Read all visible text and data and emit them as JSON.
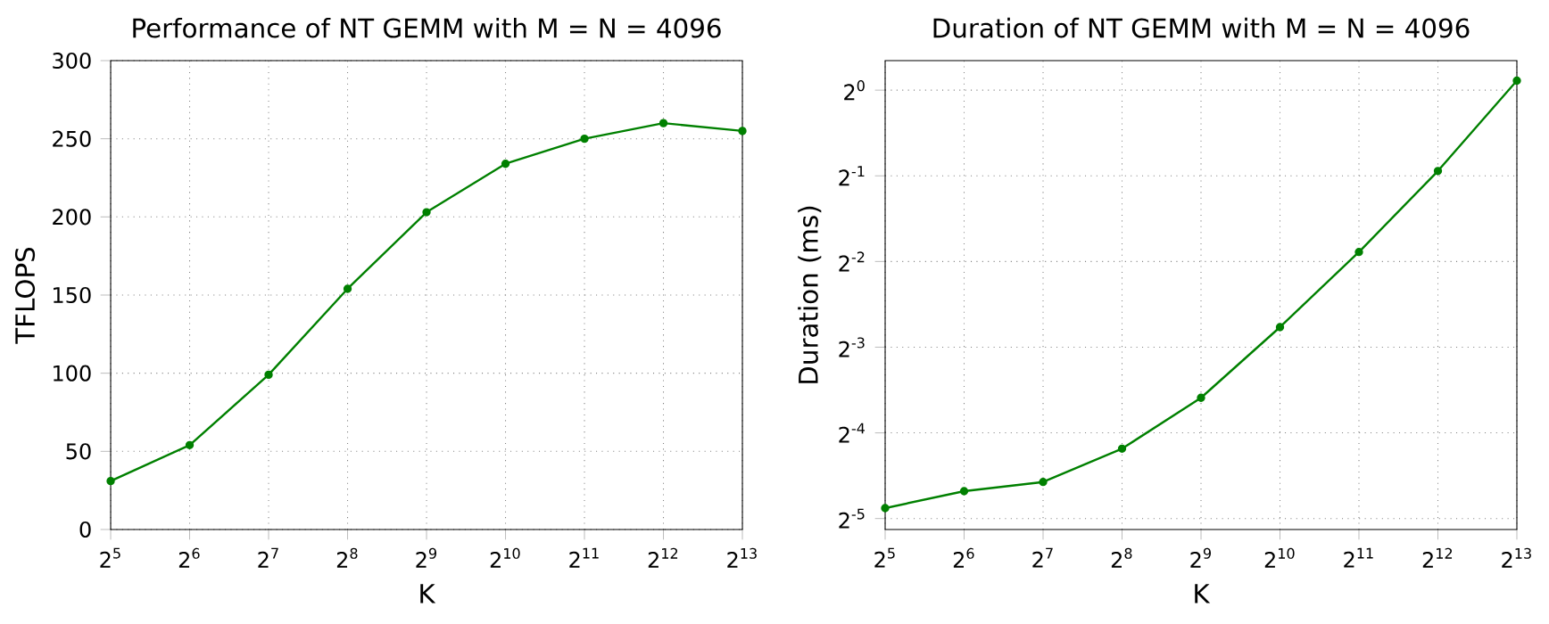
{
  "chart_data": [
    {
      "type": "line",
      "title": "Performance of NT GEMM with M = N = 4096",
      "xlabel": "K",
      "ylabel": "TFLOPS",
      "log": "x",
      "grid": true,
      "marker": "circle",
      "line_style": "solid",
      "x": [
        32,
        64,
        128,
        256,
        512,
        1024,
        2048,
        4096,
        8192
      ],
      "series": [
        {
          "color": "#008000",
          "values": [
            31,
            54,
            99,
            154,
            203,
            234,
            250,
            260,
            255
          ]
        }
      ],
      "xlim": [
        32,
        8192
      ],
      "ylim": [
        0,
        300
      ],
      "xticks": [
        {
          "value": 32,
          "label": "2$^{5}$"
        },
        {
          "value": 64,
          "label": "2$^{6}$"
        },
        {
          "value": 128,
          "label": "2$^{7}$"
        },
        {
          "value": 256,
          "label": "2$^{8}$"
        },
        {
          "value": 512,
          "label": "2$^{9}$"
        },
        {
          "value": 1024,
          "label": "2$^{10}$"
        },
        {
          "value": 2048,
          "label": "2$^{11}$"
        },
        {
          "value": 4096,
          "label": "2$^{12}$"
        },
        {
          "value": 8192,
          "label": "2$^{13}$"
        }
      ],
      "yticks": [
        0,
        50,
        100,
        150,
        200,
        250,
        300
      ]
    },
    {
      "type": "line",
      "title": "Duration of NT GEMM with M = N = 4096",
      "xlabel": "K",
      "ylabel": "Duration (ms)",
      "log": "xy",
      "grid": true,
      "marker": "circle",
      "line_style": "solid",
      "x": [
        32,
        64,
        128,
        256,
        512,
        1024,
        2048,
        4096,
        8192
      ],
      "series": [
        {
          "color": "#008000",
          "values": [
            0.034,
            0.039,
            0.042,
            0.055,
            0.083,
            0.147,
            0.27,
            0.52,
            1.08
          ]
        }
      ],
      "xlim": [
        32,
        8192
      ],
      "ylim": [
        0.0286,
        1.27
      ],
      "xticks": [
        {
          "value": 32,
          "label": "2$^{5}$"
        },
        {
          "value": 64,
          "label": "2$^{6}$"
        },
        {
          "value": 128,
          "label": "2$^{7}$"
        },
        {
          "value": 256,
          "label": "2$^{8}$"
        },
        {
          "value": 512,
          "label": "2$^{9}$"
        },
        {
          "value": 1024,
          "label": "2$^{10}$"
        },
        {
          "value": 2048,
          "label": "2$^{11}$"
        },
        {
          "value": 4096,
          "label": "2$^{12}$"
        },
        {
          "value": 8192,
          "label": "2$^{13}$"
        }
      ],
      "yticks": [
        {
          "value": 0.03125,
          "label": "2$^{-5}$"
        },
        {
          "value": 0.0625,
          "label": "2$^{-4}$"
        },
        {
          "value": 0.125,
          "label": "2$^{-3}$"
        },
        {
          "value": 0.25,
          "label": "2$^{-2}$"
        },
        {
          "value": 0.5,
          "label": "2$^{-1}$"
        },
        {
          "value": 1,
          "label": "2$^{0}$"
        }
      ]
    }
  ]
}
